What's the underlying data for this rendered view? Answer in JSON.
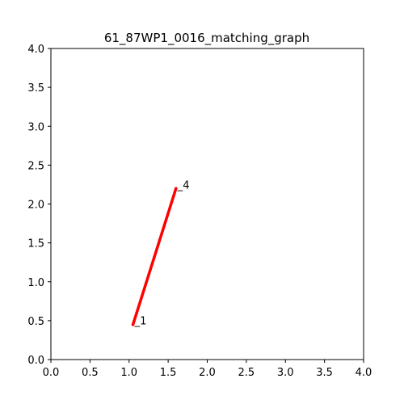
{
  "chart_data": {
    "type": "line",
    "title": "61_87WP1_0016_matching_graph",
    "xlabel": "",
    "ylabel": "",
    "xlim": [
      0,
      4
    ],
    "ylim": [
      0,
      4
    ],
    "grid": false,
    "x_ticks": [
      "0.0",
      "0.5",
      "1.0",
      "1.5",
      "2.0",
      "2.5",
      "3.0",
      "3.5",
      "4.0"
    ],
    "y_ticks": [
      "0.0",
      "0.5",
      "1.0",
      "1.5",
      "2.0",
      "2.5",
      "3.0",
      "3.5",
      "4.0"
    ],
    "nodes": [
      {
        "label": "_1",
        "x": 1.05,
        "y": 0.45
      },
      {
        "label": "_4",
        "x": 1.6,
        "y": 2.2
      }
    ],
    "edges": [
      {
        "from": 0,
        "to": 1,
        "color": "#ff0000"
      }
    ]
  }
}
